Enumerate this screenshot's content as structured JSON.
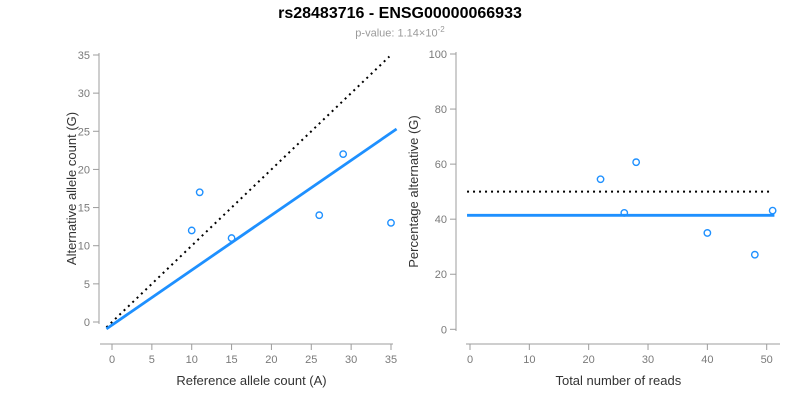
{
  "header": {
    "title": "rs28483716 - ENSG00000066933",
    "subtitle_main": "p-value: 1.14×10",
    "subtitle_sup": "-2"
  },
  "colors": {
    "accent_blue": "#1E90FF",
    "dotted_black": "#000000",
    "axis_line": "#9c9c9c",
    "tick_text": "#7a7a7a",
    "axis_title_text": "#333333",
    "subtitle_text": "#9a9a9a"
  },
  "chart_data": [
    {
      "type": "scatter",
      "name": "allele-counts-scatter",
      "xlabel": "Reference allele count (A)",
      "ylabel": "Alternative allele count (G)",
      "xlim": [
        0,
        35
      ],
      "ylim": [
        0,
        35
      ],
      "xticks": [
        0,
        5,
        10,
        15,
        20,
        25,
        30,
        35
      ],
      "yticks": [
        0,
        5,
        10,
        15,
        20,
        25,
        30,
        35
      ],
      "grid": false,
      "legend": "none",
      "points": [
        [
          10,
          12
        ],
        [
          11,
          17
        ],
        [
          15,
          11
        ],
        [
          26,
          14
        ],
        [
          29,
          22
        ],
        [
          35,
          13
        ]
      ],
      "lines": [
        {
          "name": "identity-line",
          "style": "dotted",
          "color": "#000000",
          "width": 2,
          "from": [
            -0.7,
            -0.7
          ],
          "to": [
            34.8,
            34.8
          ]
        },
        {
          "name": "fit-line",
          "style": "solid",
          "color": "#1E90FF",
          "width": 2.8,
          "from": [
            -0.7,
            -0.9
          ],
          "to": [
            35.7,
            25.3
          ]
        }
      ]
    },
    {
      "type": "scatter",
      "name": "percentage-alternative-scatter",
      "xlabel": "Total number of reads",
      "ylabel": "Percentage alternative (G)",
      "xlim": [
        0,
        50
      ],
      "ylim": [
        0,
        100
      ],
      "xticks": [
        0,
        10,
        20,
        30,
        40,
        50
      ],
      "yticks": [
        0,
        20,
        40,
        60,
        80,
        100
      ],
      "grid": false,
      "legend": "none",
      "points": [
        [
          22,
          54.5
        ],
        [
          26,
          42.3
        ],
        [
          28,
          60.7
        ],
        [
          40,
          35
        ],
        [
          48,
          27.1
        ],
        [
          51,
          43.1
        ]
      ],
      "lines": [
        {
          "name": "expected-50pct-line",
          "style": "dotted",
          "color": "#000000",
          "width": 2,
          "from": [
            -0.5,
            50
          ],
          "to": [
            51,
            50
          ]
        },
        {
          "name": "mean-pct-line",
          "style": "solid",
          "color": "#1E90FF",
          "width": 2.8,
          "from": [
            -0.5,
            41.4
          ],
          "to": [
            51.3,
            41.4
          ]
        }
      ]
    }
  ]
}
